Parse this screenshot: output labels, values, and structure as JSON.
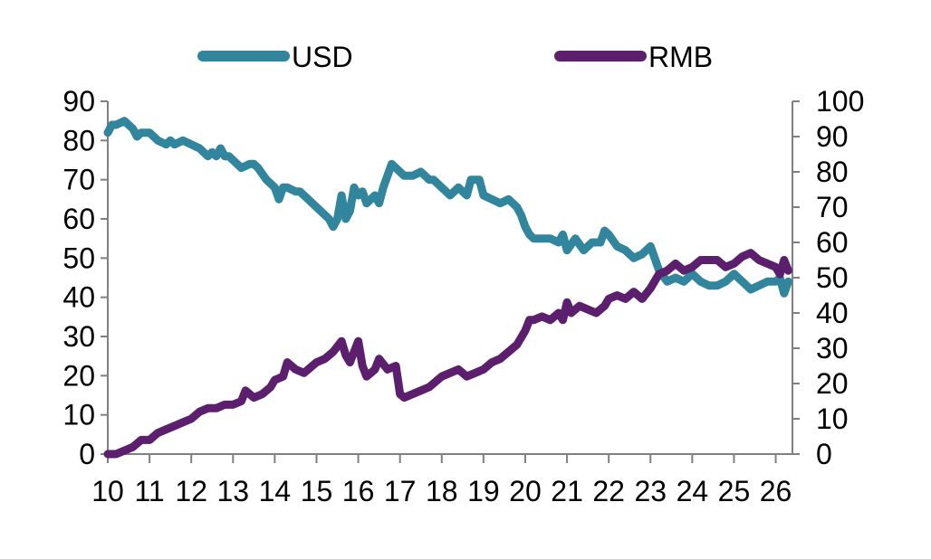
{
  "chart_data": {
    "type": "line",
    "title": "",
    "xlabel": "",
    "ylabel_left": "",
    "ylabel_right": "",
    "x_ticks": [
      "10",
      "11",
      "12",
      "13",
      "14",
      "15",
      "16",
      "17",
      "18",
      "19",
      "20",
      "21",
      "22",
      "23",
      "24",
      "25",
      "26"
    ],
    "xlim": [
      10,
      26.5
    ],
    "ylim_left": [
      0,
      90
    ],
    "ylim_right": [
      0,
      100
    ],
    "y_ticks_left": [
      "0",
      "10",
      "20",
      "30",
      "40",
      "50",
      "60",
      "70",
      "80",
      "90"
    ],
    "y_ticks_right": [
      "0",
      "10",
      "20",
      "30",
      "40",
      "50",
      "60",
      "70",
      "80",
      "90",
      "100"
    ],
    "legend_position": "top",
    "grid": false,
    "series": [
      {
        "name": "USD",
        "axis": "left",
        "color": "#31859C",
        "x": [
          10.0,
          10.1,
          10.2,
          10.4,
          10.5,
          10.6,
          10.7,
          10.8,
          10.9,
          11.0,
          11.2,
          11.4,
          11.5,
          11.6,
          11.8,
          12.0,
          12.2,
          12.4,
          12.5,
          12.6,
          12.7,
          12.8,
          12.9,
          13.0,
          13.2,
          13.4,
          13.5,
          13.6,
          13.8,
          14.0,
          14.1,
          14.2,
          14.3,
          14.5,
          14.6,
          14.8,
          15.0,
          15.1,
          15.3,
          15.4,
          15.5,
          15.6,
          15.7,
          15.8,
          15.9,
          16.0,
          16.1,
          16.2,
          16.4,
          16.5,
          16.6,
          16.8,
          17.0,
          17.1,
          17.3,
          17.5,
          17.7,
          17.8,
          18.0,
          18.2,
          18.4,
          18.6,
          18.7,
          18.9,
          19.0,
          19.2,
          19.4,
          19.6,
          19.8,
          19.9,
          20.0,
          20.1,
          20.2,
          20.4,
          20.6,
          20.8,
          20.9,
          21.0,
          21.2,
          21.4,
          21.6,
          21.8,
          21.9,
          22.0,
          22.2,
          22.4,
          22.6,
          22.8,
          23.0,
          23.2,
          23.4,
          23.6,
          23.8,
          24.0,
          24.2,
          24.4,
          24.6,
          24.8,
          25.0,
          25.2,
          25.4,
          25.6,
          25.8,
          26.0,
          26.1,
          26.2,
          26.3
        ],
        "values": [
          82,
          84,
          84,
          85,
          84,
          83,
          81,
          82,
          82,
          82,
          80,
          79,
          80,
          79,
          80,
          79,
          78,
          76,
          77,
          76,
          78,
          76,
          76,
          75,
          73,
          74,
          74,
          73,
          70,
          68,
          65,
          68,
          68,
          67,
          67,
          65,
          63,
          62,
          60,
          58,
          60,
          66,
          60,
          62,
          68,
          66,
          67,
          64,
          66,
          64,
          68,
          74,
          72,
          71,
          71,
          72,
          70,
          70,
          68,
          66,
          68,
          66,
          70,
          70,
          66,
          65,
          64,
          65,
          63,
          61,
          58,
          56,
          55,
          55,
          55,
          54,
          56,
          52,
          55,
          52,
          54,
          54,
          57,
          56,
          53,
          52,
          50,
          51,
          53,
          47,
          44,
          45,
          44,
          46,
          44,
          43,
          43,
          44,
          46,
          44,
          42,
          43,
          44,
          44,
          45,
          41,
          44
        ]
      },
      {
        "name": "RMB",
        "axis": "right",
        "color": "#5B1F6E",
        "x": [
          10.0,
          10.2,
          10.4,
          10.6,
          10.8,
          11.0,
          11.2,
          11.4,
          11.6,
          11.8,
          12.0,
          12.2,
          12.4,
          12.6,
          12.8,
          13.0,
          13.2,
          13.3,
          13.5,
          13.7,
          13.9,
          14.0,
          14.2,
          14.3,
          14.5,
          14.7,
          14.8,
          15.0,
          15.2,
          15.4,
          15.6,
          15.7,
          15.8,
          16.0,
          16.1,
          16.2,
          16.4,
          16.5,
          16.7,
          16.9,
          17.0,
          17.1,
          17.3,
          17.5,
          17.7,
          17.9,
          18.0,
          18.2,
          18.4,
          18.6,
          18.8,
          19.0,
          19.2,
          19.4,
          19.6,
          19.8,
          20.0,
          20.1,
          20.2,
          20.4,
          20.6,
          20.8,
          20.9,
          21.0,
          21.1,
          21.3,
          21.5,
          21.7,
          21.9,
          22.0,
          22.2,
          22.4,
          22.6,
          22.8,
          23.0,
          23.2,
          23.4,
          23.6,
          23.8,
          24.0,
          24.2,
          24.4,
          24.6,
          24.8,
          25.0,
          25.2,
          25.4,
          25.6,
          25.8,
          26.0,
          26.1,
          26.2,
          26.3
        ],
        "values": [
          0,
          0,
          1,
          2,
          4,
          4,
          6,
          7,
          8,
          9,
          10,
          12,
          13,
          13,
          14,
          14,
          15,
          18,
          16,
          17,
          19,
          21,
          22,
          26,
          24,
          23,
          24,
          26,
          27,
          29,
          32,
          28,
          26,
          32,
          25,
          22,
          24,
          27,
          24,
          25,
          17,
          16,
          17,
          18,
          19,
          21,
          22,
          23,
          24,
          22,
          23,
          24,
          26,
          27,
          29,
          31,
          35,
          38,
          38,
          39,
          38,
          40,
          38,
          43,
          40,
          42,
          41,
          40,
          42,
          44,
          45,
          44,
          46,
          44,
          47,
          51,
          52,
          54,
          52,
          53,
          55,
          55,
          55,
          53,
          54,
          56,
          57,
          55,
          54,
          53,
          51,
          55,
          52
        ]
      }
    ]
  }
}
